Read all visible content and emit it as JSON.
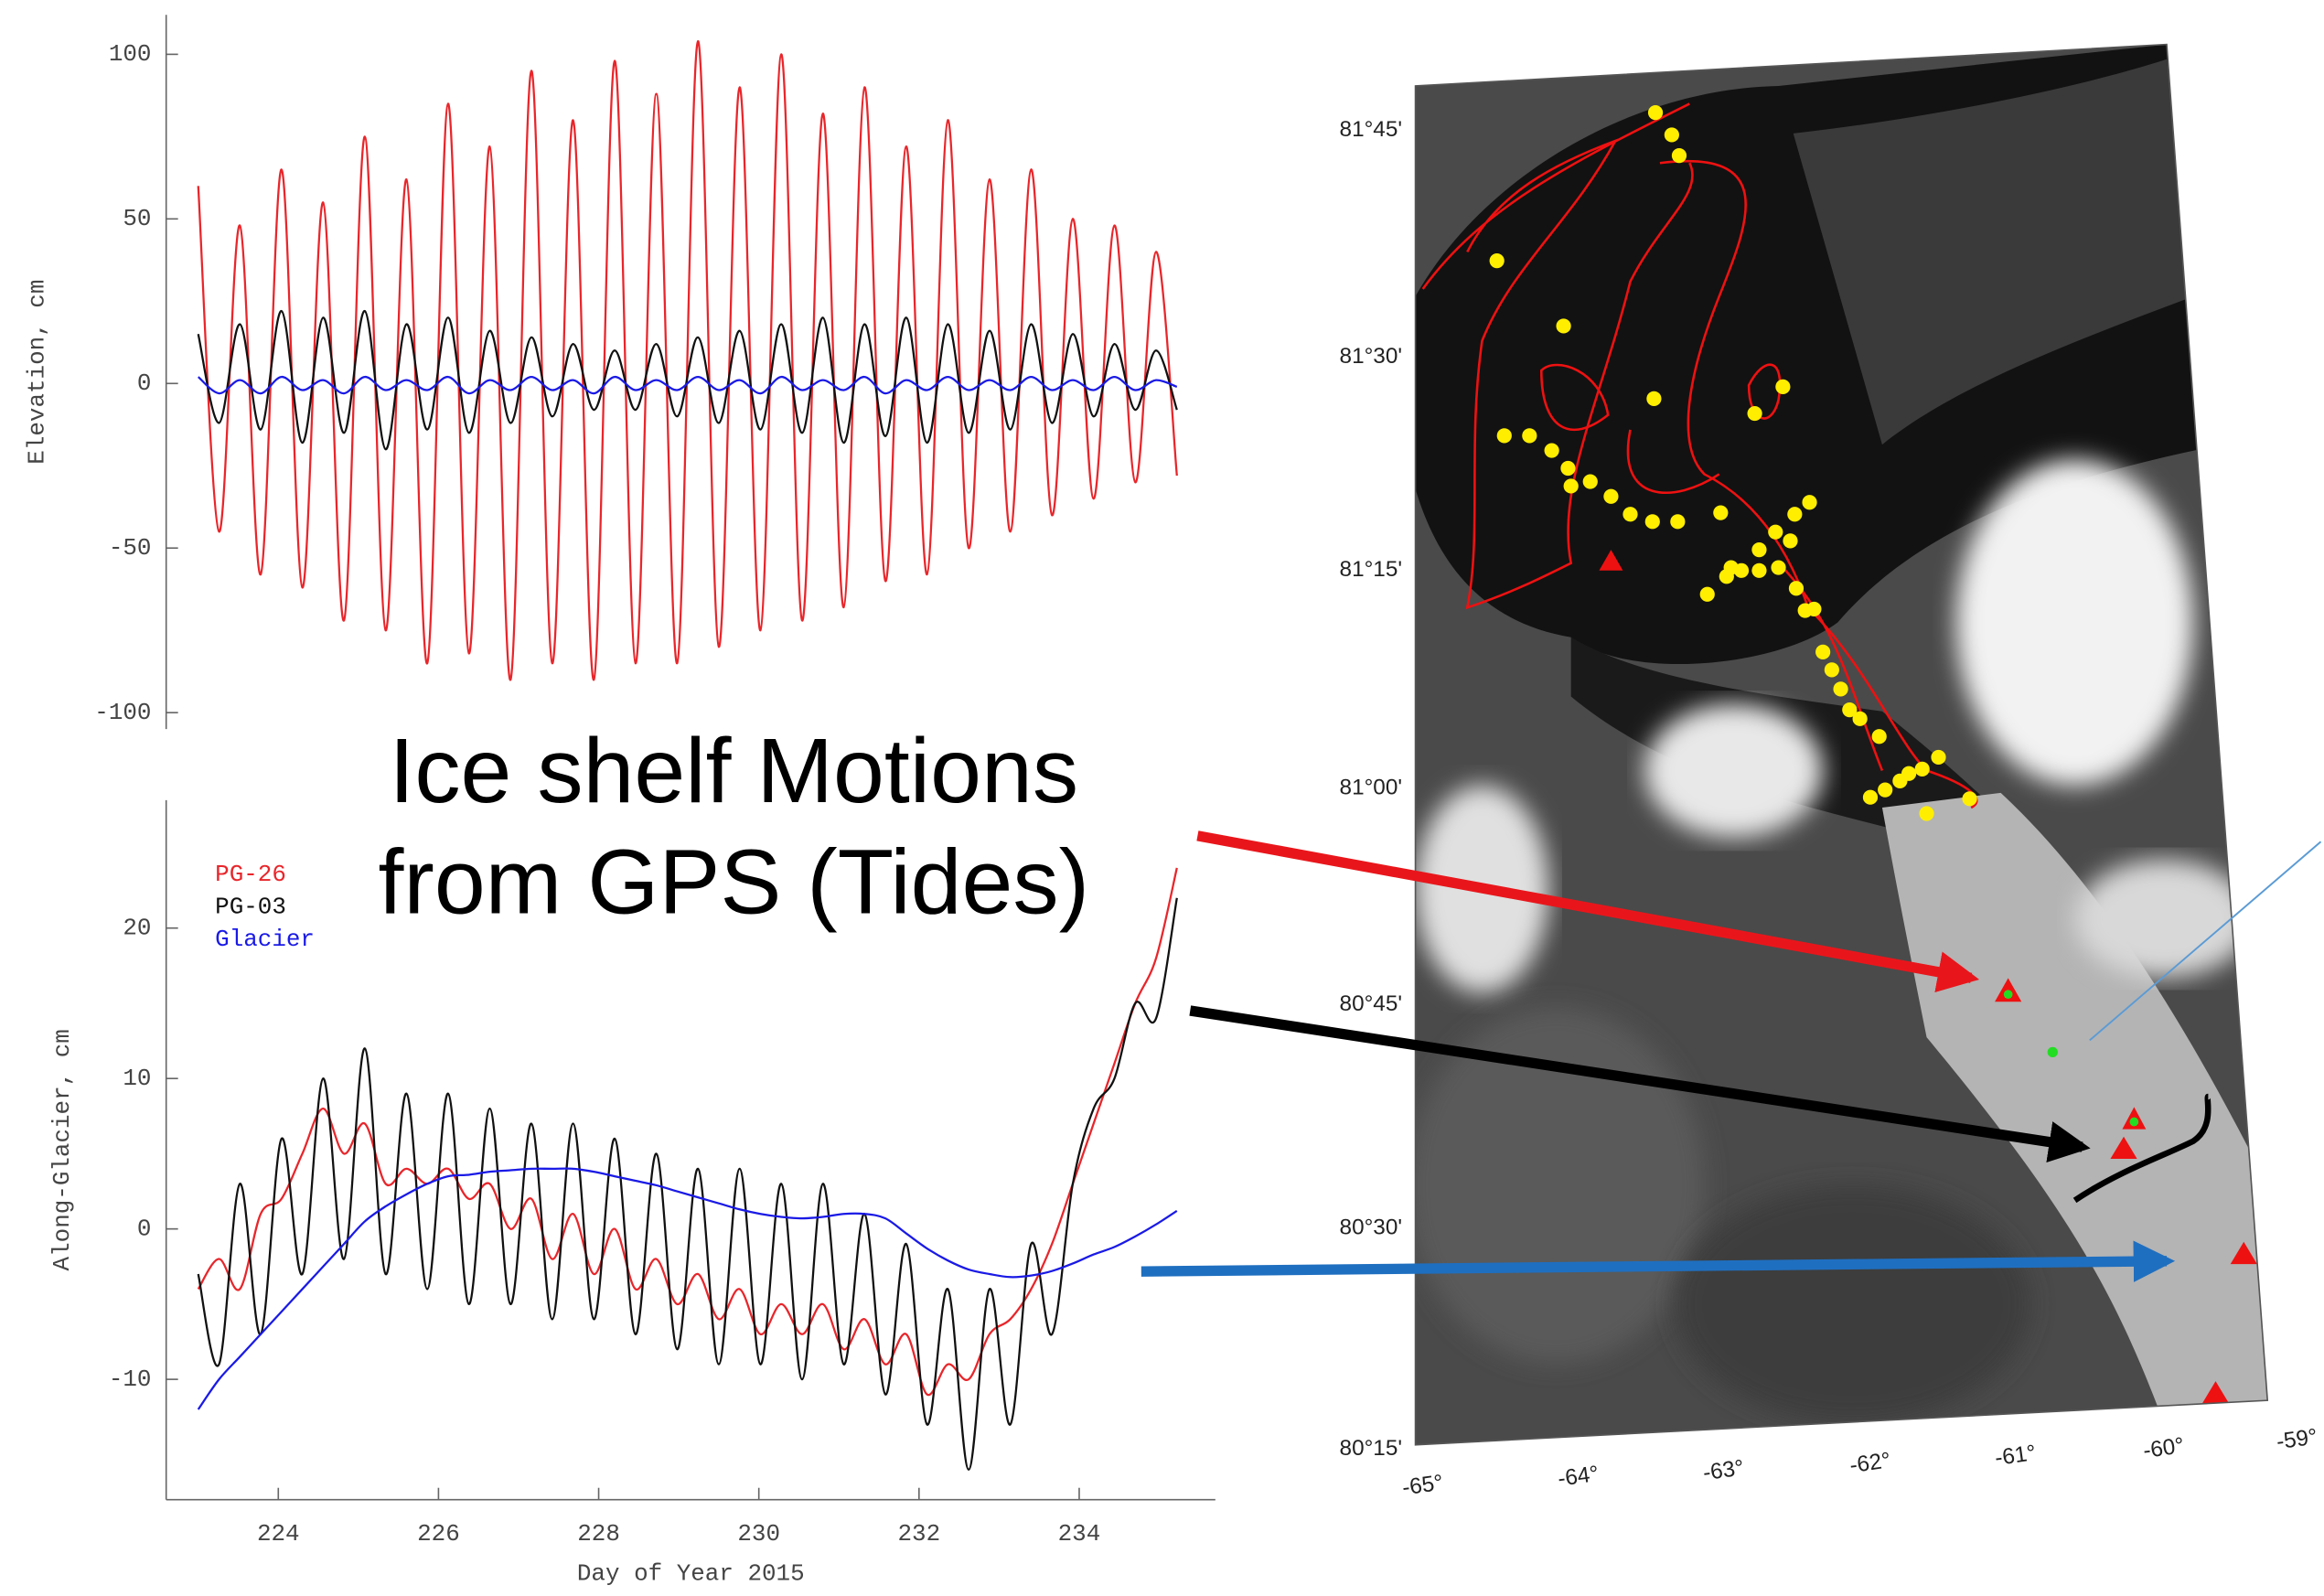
{
  "chart_data": [
    {
      "type": "line",
      "ylabel": "Elevation, cm",
      "x": [
        223,
        223.26,
        223.52,
        223.78,
        224.04,
        224.3,
        224.56,
        224.82,
        225.08,
        225.34,
        225.6,
        225.86,
        226.12,
        226.38,
        226.64,
        226.9,
        227.16,
        227.42,
        227.68,
        227.94,
        228.2,
        228.46,
        228.72,
        228.98,
        229.24,
        229.5,
        229.76,
        230.02,
        230.28,
        230.54,
        230.8,
        231.06,
        231.32,
        231.58,
        231.84,
        232.1,
        232.36,
        232.62,
        232.88,
        233.14,
        233.4,
        233.66,
        233.92,
        234.18,
        234.44,
        234.7,
        234.96,
        235.22
      ],
      "series": [
        {
          "color": "#e8262b",
          "values": [
            60,
            -45,
            48,
            -58,
            65,
            -62,
            55,
            -72,
            75,
            -75,
            62,
            -85,
            85,
            -82,
            72,
            -90,
            95,
            -85,
            80,
            -90,
            98,
            -85,
            88,
            -85,
            104,
            -80,
            90,
            -75,
            100,
            -72,
            82,
            -68,
            90,
            -60,
            72,
            -58,
            80,
            -50,
            62,
            -45,
            65,
            -40,
            50,
            -35,
            48,
            -30,
            40,
            -28
          ]
        },
        {
          "color": "#111111",
          "values": [
            15,
            -12,
            18,
            -14,
            22,
            -18,
            20,
            -15,
            22,
            -20,
            18,
            -14,
            20,
            -15,
            16,
            -12,
            14,
            -10,
            12,
            -8,
            10,
            -8,
            12,
            -10,
            14,
            -12,
            16,
            -14,
            18,
            -15,
            20,
            -18,
            18,
            -16,
            20,
            -18,
            18,
            -15,
            16,
            -14,
            18,
            -12,
            15,
            -10,
            12,
            -8,
            10,
            -8
          ]
        },
        {
          "color": "#1a1ae6",
          "values": [
            2,
            -3,
            1,
            -3,
            2,
            -2,
            1,
            -3,
            2,
            -2,
            1,
            -2,
            2,
            -3,
            1,
            -2,
            2,
            -2,
            1,
            -3,
            2,
            -2,
            1,
            -2,
            2,
            -2,
            1,
            -3,
            2,
            -2,
            1,
            -2,
            2,
            -3,
            1,
            -2,
            2,
            -2,
            1,
            -2,
            2,
            -2,
            1,
            -2,
            2,
            -2,
            1,
            -1
          ]
        }
      ],
      "xlim": [
        222.6,
        235.7
      ],
      "ylim": [
        -105,
        112
      ],
      "yticks": [
        -100,
        -50,
        0,
        50,
        100
      ]
    },
    {
      "type": "line",
      "ylabel": "Along-Glacier, cm",
      "xlabel": "Day of Year 2015",
      "legend": "upper left",
      "x": [
        223,
        223.26,
        223.52,
        223.78,
        224.04,
        224.3,
        224.56,
        224.82,
        225.08,
        225.34,
        225.6,
        225.86,
        226.12,
        226.38,
        226.64,
        226.9,
        227.16,
        227.42,
        227.68,
        227.94,
        228.2,
        228.46,
        228.72,
        228.98,
        229.24,
        229.5,
        229.76,
        230.02,
        230.28,
        230.54,
        230.8,
        231.06,
        231.32,
        231.58,
        231.84,
        232.1,
        232.36,
        232.62,
        232.88,
        233.14,
        233.4,
        233.66,
        233.92,
        234.18,
        234.44,
        234.7,
        234.96,
        235.22
      ],
      "series": [
        {
          "name": "PG-26",
          "color": "#e8262b",
          "values": [
            -4,
            -2,
            -4,
            1,
            2,
            5,
            8,
            5,
            7,
            3,
            4,
            3,
            4,
            2,
            3,
            0,
            2,
            -2,
            1,
            -3,
            0,
            -4,
            -2,
            -5,
            -3,
            -6,
            -4,
            -7,
            -5,
            -7,
            -5,
            -8,
            -6,
            -9,
            -7,
            -11,
            -9,
            -10,
            -7,
            -6,
            -4,
            -1,
            3,
            7,
            11,
            15,
            18,
            24
          ]
        },
        {
          "name": "PG-03",
          "color": "#111111",
          "values": [
            -3,
            -9,
            3,
            -7,
            6,
            -3,
            10,
            -2,
            12,
            -3,
            9,
            -4,
            9,
            -5,
            8,
            -5,
            7,
            -6,
            7,
            -6,
            6,
            -7,
            5,
            -8,
            4,
            -9,
            4,
            -9,
            3,
            -10,
            3,
            -9,
            1,
            -11,
            -1,
            -13,
            -4,
            -16,
            -4,
            -13,
            -1,
            -7,
            3,
            8,
            10,
            15,
            14,
            22
          ]
        },
        {
          "name": "Glacier",
          "color": "#1a1ae6",
          "values": [
            -12,
            -10,
            -8.5,
            -7,
            -5.5,
            -4,
            -2.5,
            -1,
            0.5,
            1.5,
            2.3,
            3,
            3.5,
            3.6,
            3.8,
            3.9,
            4,
            4,
            4,
            3.8,
            3.5,
            3.2,
            2.9,
            2.5,
            2.1,
            1.7,
            1.3,
            1,
            0.8,
            0.7,
            0.8,
            1,
            1,
            0.7,
            -0.3,
            -1.3,
            -2.1,
            -2.7,
            -3,
            -3.2,
            -3.1,
            -2.8,
            -2.3,
            -1.7,
            -1.2,
            -0.5,
            0.3,
            1.2
          ]
        }
      ],
      "xlim": [
        222.6,
        235.7
      ],
      "ylim": [
        -18,
        28.5
      ],
      "yticks": [
        -10,
        0,
        10,
        20
      ],
      "xticks": [
        224,
        226,
        228,
        230,
        232,
        234
      ]
    }
  ],
  "map": {
    "lat_labels": [
      "81°45'",
      "81°30'",
      "81°15'",
      "81°00'",
      "80°45'",
      "80°30'",
      "80°15'"
    ],
    "lon_labels": [
      "-65°",
      "-64°",
      "-63°",
      "-62°",
      "-61°",
      "-60°",
      "-59°"
    ]
  },
  "annotation": [
    "Ice shelf Motions",
    "from GPS (Tides)"
  ]
}
